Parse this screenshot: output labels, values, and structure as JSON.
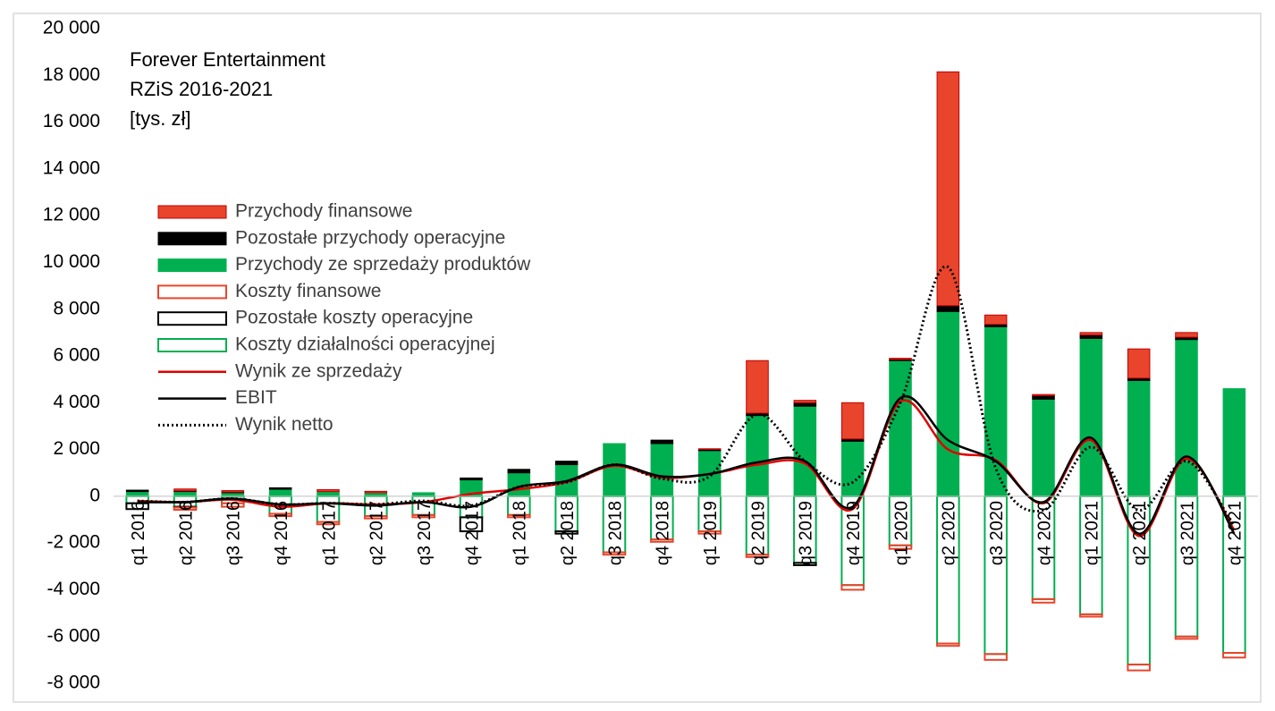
{
  "chart_data": {
    "type": "bar",
    "title_lines": [
      "Forever Entertainment",
      "RZiS 2016-2021",
      "[tys. zł]"
    ],
    "categories": [
      "q1 2016",
      "q2 2016",
      "q3 2016",
      "q4 2016",
      "q1 2017",
      "q2 2017",
      "q3 2017",
      "q4 2017",
      "q1 2018",
      "q2 2018",
      "q3 2018",
      "q4 2018",
      "q1 2019",
      "q2 2019",
      "q3 2019",
      "q4 2019",
      "q1 2020",
      "q2 2020",
      "q3 2020",
      "q4 2020",
      "q1 2021",
      "q2 2021",
      "q3 2021",
      "q4 2021"
    ],
    "ylim": [
      -8000,
      20000
    ],
    "yticks": [
      {
        "value": -8000,
        "label": "-8 000"
      },
      {
        "value": -6000,
        "label": "-6 000"
      },
      {
        "value": -4000,
        "label": "-4 000"
      },
      {
        "value": -2000,
        "label": "-2 000"
      },
      0,
      {
        "value": 2000,
        "label": "2 000"
      },
      {
        "value": 4000,
        "label": "4 000"
      },
      {
        "value": 6000,
        "label": "6 000"
      },
      {
        "value": 8000,
        "label": "8 000"
      },
      {
        "value": 10000,
        "label": "10 000"
      },
      {
        "value": 12000,
        "label": "12 000"
      },
      {
        "value": 14000,
        "label": "14 000"
      },
      {
        "value": 16000,
        "label": "16 000"
      },
      {
        "value": 18000,
        "label": "18 000"
      },
      {
        "value": 20000,
        "label": "20 000"
      }
    ],
    "grid": false,
    "series": [
      {
        "name": "Przychody finansowe",
        "color": "#e8452c",
        "style": "fill",
        "values": [
          0,
          80,
          60,
          0,
          80,
          60,
          0,
          0,
          0,
          0,
          0,
          0,
          30,
          2250,
          100,
          1550,
          50,
          10000,
          400,
          50,
          100,
          1250,
          200,
          0
        ]
      },
      {
        "name": "Pozostałe przychody operacyjne",
        "color": "#000000",
        "style": "fill",
        "values": [
          60,
          30,
          30,
          60,
          0,
          0,
          0,
          80,
          150,
          150,
          0,
          150,
          50,
          100,
          150,
          100,
          50,
          250,
          100,
          150,
          150,
          100,
          100,
          0
        ]
      },
      {
        "name": "Przychody ze sprzedaży produktów",
        "color": "#00b050",
        "style": "fill",
        "values": [
          200,
          200,
          150,
          300,
          200,
          150,
          150,
          700,
          1000,
          1350,
          2250,
          2250,
          1950,
          3450,
          3850,
          2350,
          5800,
          7900,
          7250,
          4150,
          6750,
          4950,
          6700,
          4600
        ]
      },
      {
        "name": "Koszty finansowe",
        "color": "#e8452c",
        "style": "outline",
        "values": [
          0,
          -100,
          -150,
          -100,
          -100,
          -100,
          -100,
          0,
          -100,
          0,
          -100,
          -100,
          -100,
          -100,
          0,
          -200,
          -150,
          -100,
          -250,
          -150,
          -100,
          -250,
          -100,
          -200
        ]
      },
      {
        "name": "Pozostałe koszty operacyjne",
        "color": "#000000",
        "style": "outline",
        "values": [
          -250,
          -30,
          0,
          0,
          0,
          0,
          0,
          -600,
          0,
          -100,
          0,
          0,
          0,
          0,
          -100,
          0,
          0,
          0,
          0,
          0,
          0,
          0,
          0,
          0
        ]
      },
      {
        "name": "Koszty działalności operacyjnej",
        "color": "#00b050",
        "style": "outline",
        "values": [
          -300,
          -450,
          -300,
          -750,
          -1100,
          -850,
          -800,
          -900,
          -800,
          -1500,
          -2400,
          -1850,
          -1500,
          -2500,
          -2850,
          -3800,
          -2100,
          -6300,
          -6750,
          -4400,
          -5050,
          -7200,
          -6000,
          -6700
        ]
      },
      {
        "name": "Wynik ze sprzedaży",
        "color": "#e00000",
        "style": "line",
        "values": [
          -200,
          -250,
          -150,
          -450,
          -300,
          -350,
          -250,
          100,
          300,
          600,
          1300,
          800,
          950,
          1350,
          1400,
          -550,
          4050,
          2000,
          1550,
          -300,
          2400,
          -1700,
          1600,
          -1450
        ]
      },
      {
        "name": "EBIT",
        "color": "#000000",
        "style": "line",
        "values": [
          -250,
          -250,
          -100,
          -350,
          -300,
          -400,
          -250,
          -450,
          400,
          650,
          1350,
          850,
          950,
          1450,
          1500,
          -450,
          4200,
          2400,
          1500,
          -250,
          2500,
          -1600,
          1700,
          -1600
        ]
      },
      {
        "name": "Wynik netto",
        "color": "#000000",
        "style": "dotted",
        "values": [
          -200,
          -250,
          -100,
          -350,
          -300,
          -350,
          -200,
          -400,
          400,
          600,
          1350,
          750,
          850,
          3500,
          1500,
          600,
          4000,
          9800,
          1200,
          -600,
          2100,
          -600,
          1500,
          -1300
        ]
      }
    ]
  }
}
